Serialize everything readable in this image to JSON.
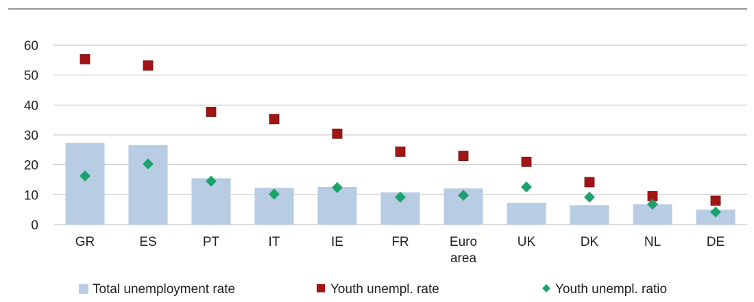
{
  "chart_data": {
    "type": "bar",
    "title": "",
    "xlabel": "",
    "ylabel": "",
    "ylim": [
      0,
      60
    ],
    "yticks": [
      0,
      10,
      20,
      30,
      40,
      50,
      60
    ],
    "grid": true,
    "legend_position": "bottom",
    "categories": [
      [
        "GR"
      ],
      [
        "ES"
      ],
      [
        "PT"
      ],
      [
        "IT"
      ],
      [
        "IE"
      ],
      [
        "FR"
      ],
      [
        "Euro",
        "area"
      ],
      [
        "UK"
      ],
      [
        "DK"
      ],
      [
        "NL"
      ],
      [
        "DE"
      ]
    ],
    "series": [
      {
        "name": "Total unemployment rate",
        "type": "bar",
        "color": "#b8cce4",
        "values": [
          27.3,
          26.6,
          15.5,
          12.3,
          12.6,
          10.8,
          12.1,
          7.3,
          6.5,
          6.8,
          5.0
        ]
      },
      {
        "name": "Youth unempl. rate",
        "type": "marker-square",
        "color": "#a31515",
        "values": [
          55.3,
          53.2,
          37.7,
          35.3,
          30.4,
          24.4,
          23.0,
          21.0,
          14.2,
          9.5,
          8.0
        ]
      },
      {
        "name": "Youth unempl. ratio",
        "type": "marker-diamond",
        "color": "#1aa36b",
        "values": [
          16.3,
          20.3,
          14.5,
          10.2,
          12.4,
          9.2,
          9.8,
          12.6,
          9.2,
          6.8,
          4.2
        ]
      }
    ]
  }
}
